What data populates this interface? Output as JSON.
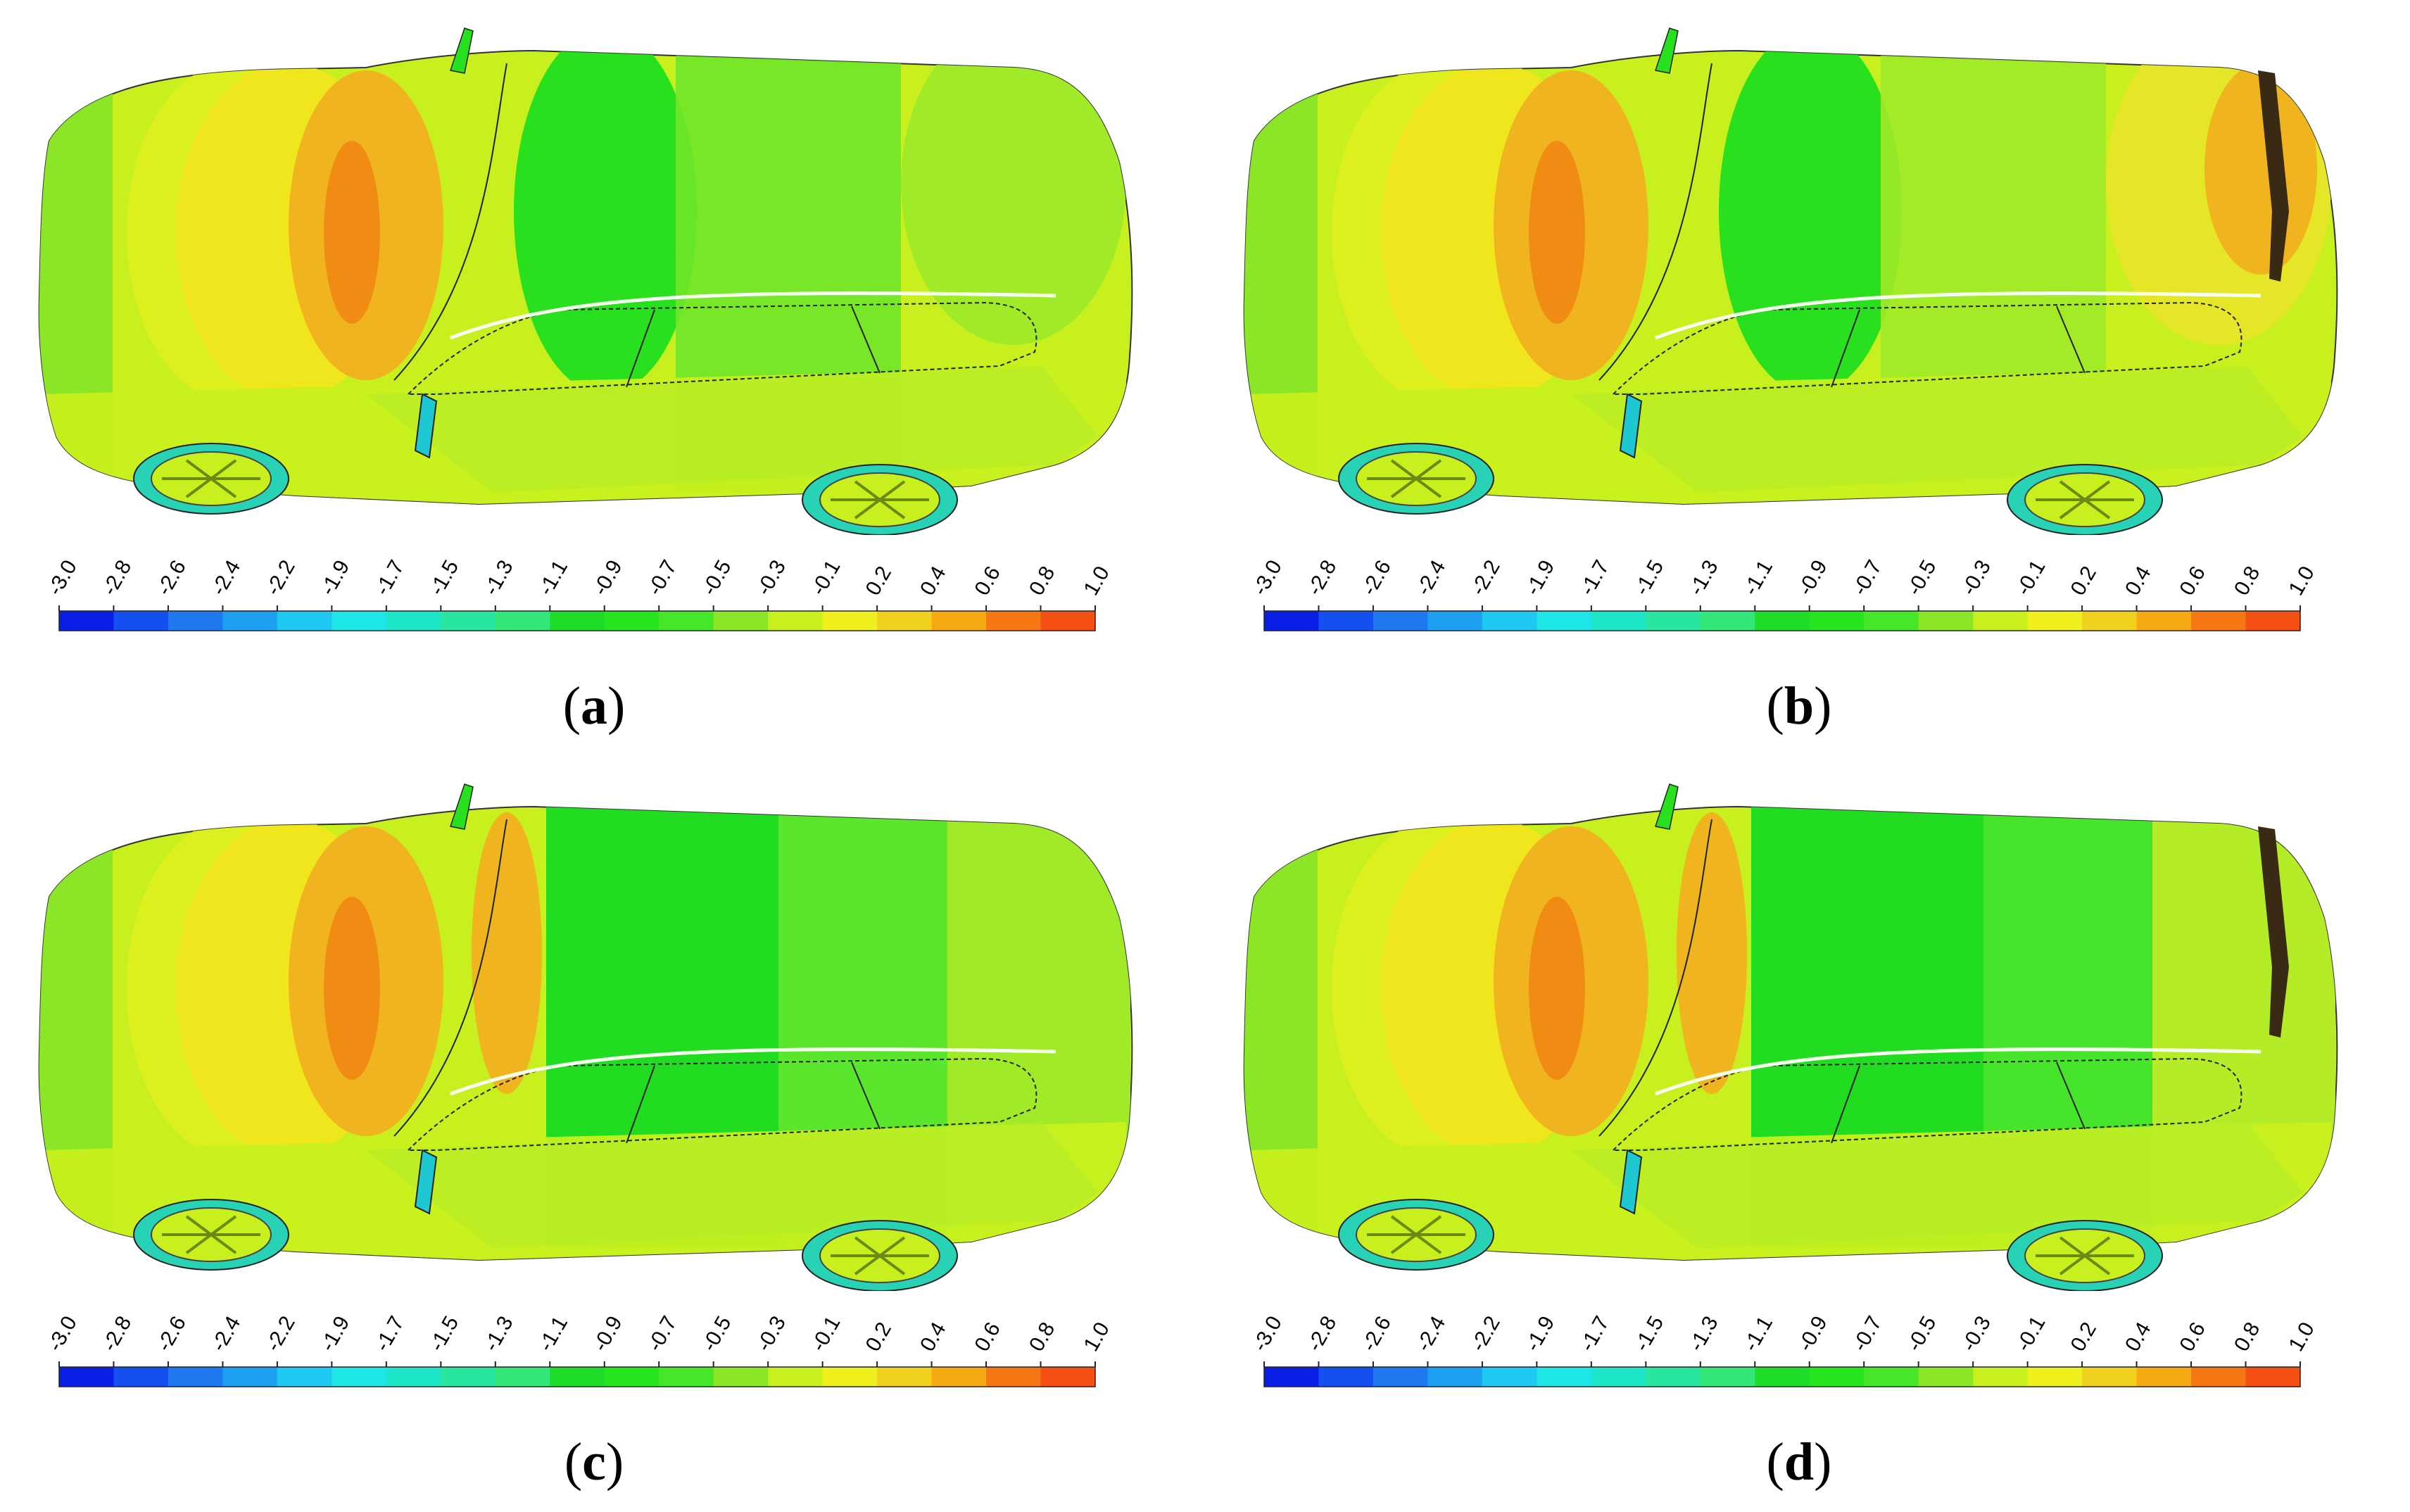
{
  "colorbar": {
    "ticks": [
      "-3.0",
      "-2.8",
      "-2.6",
      "-2.4",
      "-2.2",
      "-1.9",
      "-1.7",
      "-1.5",
      "-1.3",
      "-1.1",
      "-0.9",
      "-0.7",
      "-0.5",
      "-0.3",
      "-0.1",
      "0.2",
      "0.4",
      "0.6",
      "0.8",
      "1.0"
    ],
    "colors": [
      "#0a1ee6",
      "#1450f0",
      "#1e78f0",
      "#1ea0f0",
      "#1ec8f0",
      "#1ee6e6",
      "#1ee6c8",
      "#28e6a0",
      "#32e678",
      "#1edc28",
      "#28e61e",
      "#46e628",
      "#8ce628",
      "#c8f01e",
      "#f0f01e",
      "#f0d21e",
      "#f5aa14",
      "#f57814",
      "#f55014"
    ]
  },
  "panels": [
    {
      "id": "a",
      "label_letter": "a",
      "spoiler": false,
      "roof_colors": [
        "#28e01e",
        "#6ee628",
        "#a0ea28"
      ],
      "roof_split": false
    },
    {
      "id": "b",
      "label_letter": "b",
      "spoiler": true,
      "roof_colors": [
        "#28e01e",
        "#a0ea28",
        "#e6e628"
      ],
      "roof_split": false
    },
    {
      "id": "c",
      "label_letter": "c",
      "spoiler": false,
      "roof_colors": [
        "#22dc22",
        "#5ae62c",
        "#a0ea28"
      ],
      "roof_split": true
    },
    {
      "id": "d",
      "label_letter": "d",
      "spoiler": true,
      "roof_colors": [
        "#22dc22",
        "#46e42a",
        "#b4ec28"
      ],
      "roof_split": true
    }
  ],
  "palette": {
    "body": "#c8f01e",
    "body_green": "#8ce628",
    "windshield_hot": "#f08c14",
    "windshield_warm": "#f0b41e",
    "windshield_yellow": "#f0e61e",
    "spoiler": "#3a2a14",
    "outline": "#333333"
  }
}
